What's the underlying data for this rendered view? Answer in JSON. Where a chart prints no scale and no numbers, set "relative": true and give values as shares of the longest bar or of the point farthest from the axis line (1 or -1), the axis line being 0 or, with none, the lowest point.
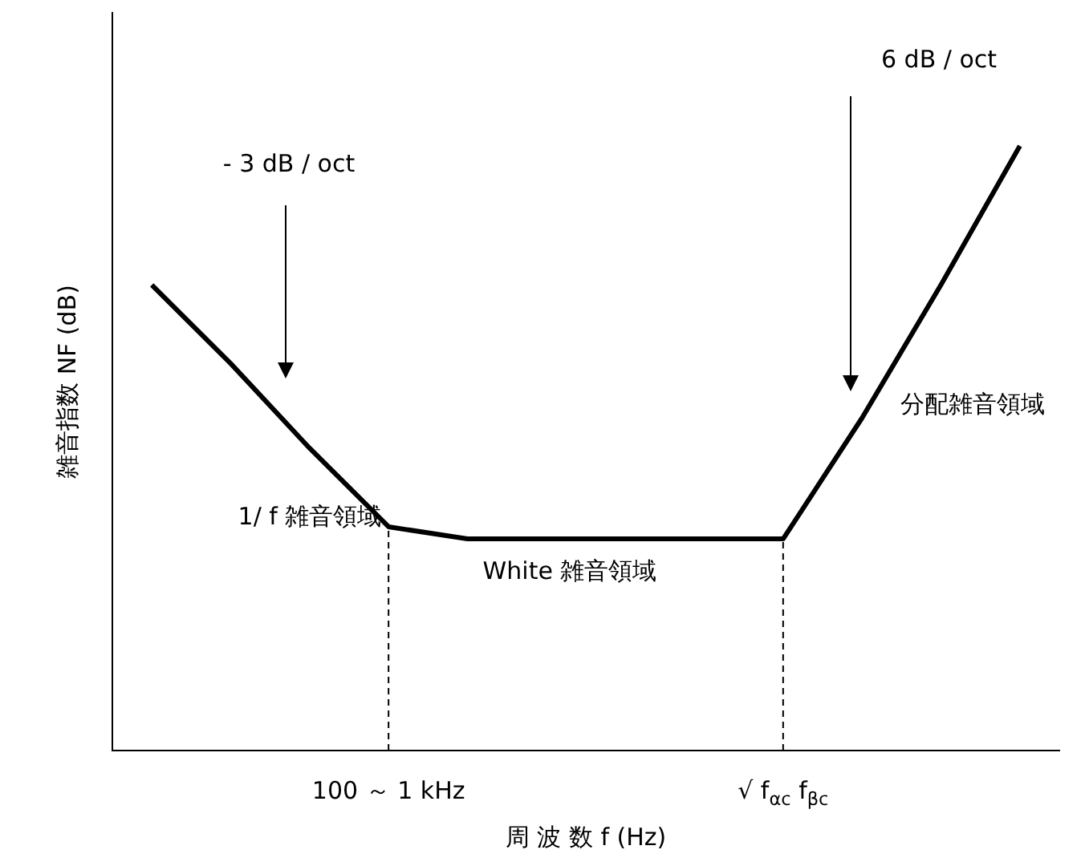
{
  "chart_data": {
    "type": "line",
    "relative": true,
    "xlabel": "周 波 数 f (Hz)",
    "ylabel": "雑音指数 NF (dB)",
    "categories": [
      null,
      null,
      null,
      "100 ～ 1 kHz",
      null,
      null,
      null,
      null,
      "√ f$_{αc}$ f$_{βc}$",
      null,
      null,
      null
    ],
    "series": [
      {
        "color": "#000000",
        "values": [
          0.77,
          0.64,
          0.5,
          0.37,
          0.35,
          0.35,
          0.35,
          0.35,
          0.35,
          0.55,
          0.77,
          1
        ]
      }
    ],
    "ref_lines": [
      {
        "axis": "x",
        "value": "100 ～ 1 kHz",
        "line_style": "dashed"
      },
      {
        "axis": "x",
        "value": "√ f$_{αc}$ f$_{βc}$",
        "line_style": "dashed"
      }
    ],
    "annotations": [
      "- 3 dB / oct",
      "6 dB / oct",
      "1/ f 雑音領域",
      "White 雑音領域",
      "分配雑音領域"
    ],
    "grid": false,
    "legend": false,
    "marker": "none",
    "line_style": "solid"
  }
}
